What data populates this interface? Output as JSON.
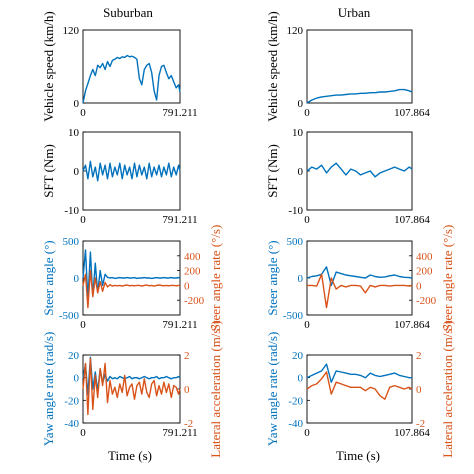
{
  "colors": {
    "blue": "#0072BD",
    "orange": "#D95319",
    "axis": "#000000"
  },
  "columns": [
    {
      "title": "Suburban",
      "x_start_label": "0",
      "x_end_label": "791.211",
      "x_range": [
        0,
        791.211
      ]
    },
    {
      "title": "Urban",
      "x_start_label": "0",
      "x_end_label": "107.864",
      "x_range": [
        0,
        107.864
      ]
    }
  ],
  "xlabel": "Time (s)",
  "chart_data": [
    {
      "type": "line",
      "panel": "speed-suburban",
      "ylabel": "Vehicle speed (km/h)",
      "ylim": [
        0,
        120
      ],
      "y_ticks": [
        "0",
        "120"
      ],
      "xlim": [
        0,
        791.211
      ],
      "series": [
        {
          "color": "#0072BD",
          "x": [
            0,
            20,
            40,
            60,
            80,
            100,
            120,
            140,
            160,
            180,
            200,
            220,
            240,
            260,
            280,
            300,
            320,
            340,
            360,
            380,
            400,
            420,
            440,
            460,
            480,
            500,
            520,
            540,
            560,
            580,
            600,
            620,
            640,
            660,
            680,
            700,
            720,
            740,
            760,
            780,
            791.211
          ],
          "values": [
            0,
            20,
            32,
            45,
            55,
            45,
            62,
            58,
            65,
            55,
            68,
            60,
            70,
            72,
            75,
            73,
            76,
            75,
            78,
            76,
            77,
            75,
            72,
            40,
            30,
            55,
            62,
            65,
            50,
            20,
            5,
            45,
            60,
            62,
            50,
            40,
            45,
            35,
            25,
            30,
            18
          ]
        }
      ]
    },
    {
      "type": "line",
      "panel": "speed-urban",
      "ylabel": "Vehicle speed (km/h)",
      "ylim": [
        0,
        120
      ],
      "y_ticks": [
        "0",
        "120"
      ],
      "xlim": [
        0,
        107.864
      ],
      "series": [
        {
          "color": "#0072BD",
          "x": [
            0,
            5,
            10,
            15,
            20,
            25,
            30,
            35,
            40,
            45,
            50,
            55,
            60,
            65,
            70,
            75,
            80,
            85,
            90,
            95,
            100,
            105,
            107.864
          ],
          "values": [
            0,
            5,
            8,
            10,
            11,
            12,
            13,
            13,
            14,
            15,
            15,
            16,
            16,
            17,
            17,
            18,
            18,
            19,
            20,
            22,
            22,
            20,
            18
          ]
        }
      ]
    },
    {
      "type": "line",
      "panel": "sft-suburban",
      "ylabel": "SFT (Nm)",
      "ylim": [
        -10,
        10
      ],
      "y_ticks": [
        "10",
        "0",
        "-10"
      ],
      "xlim": [
        0,
        791.211
      ],
      "series": [
        {
          "color": "#0072BD",
          "x": [
            0,
            20,
            40,
            60,
            80,
            100,
            120,
            140,
            160,
            180,
            200,
            220,
            240,
            260,
            280,
            300,
            320,
            340,
            360,
            380,
            400,
            420,
            440,
            460,
            480,
            500,
            520,
            540,
            560,
            580,
            600,
            620,
            640,
            660,
            680,
            700,
            720,
            740,
            760,
            780,
            791.211
          ],
          "values": [
            0,
            1.5,
            -2,
            2.5,
            -1.5,
            1,
            -2.5,
            2,
            -1,
            1.5,
            -2,
            2,
            -1.5,
            1,
            -1,
            2,
            -2,
            1.5,
            -1,
            1,
            -2,
            2,
            -1.5,
            1.5,
            -1,
            1,
            -2,
            2,
            -1.5,
            1,
            -1,
            1.5,
            -1.5,
            1,
            -1,
            2,
            -1.5,
            1,
            -1,
            1.5,
            0
          ]
        }
      ]
    },
    {
      "type": "line",
      "panel": "sft-urban",
      "ylabel": "SFT (Nm)",
      "ylim": [
        -10,
        10
      ],
      "y_ticks": [
        "10",
        "0",
        "-10"
      ],
      "xlim": [
        0,
        107.864
      ],
      "series": [
        {
          "color": "#0072BD",
          "x": [
            0,
            5,
            10,
            15,
            20,
            25,
            30,
            35,
            40,
            45,
            50,
            55,
            60,
            65,
            70,
            75,
            80,
            85,
            90,
            95,
            100,
            105,
            107.864
          ],
          "values": [
            0,
            1,
            0.5,
            1.5,
            -0.5,
            1,
            2,
            0.5,
            -1,
            0.5,
            0,
            -1,
            -0.5,
            0,
            -1.5,
            -0.5,
            0,
            0.5,
            1,
            0.5,
            0,
            1,
            0.5
          ]
        }
      ]
    },
    {
      "type": "line",
      "panel": "steer-suburban",
      "ylabel": "Steer angle (°)",
      "ylim": [
        -500,
        500
      ],
      "y_ticks": [
        "500",
        "0",
        "-500"
      ],
      "y2label": "Steer angle rate (°/s)",
      "y2lim": [
        -400,
        600
      ],
      "y2_ticks": [
        "400",
        "200",
        "0",
        "-200"
      ],
      "xlim": [
        0,
        791.211
      ],
      "series": [
        {
          "color": "#0072BD",
          "axis": "left",
          "x": [
            0,
            20,
            40,
            60,
            80,
            100,
            120,
            140,
            160,
            180,
            200,
            220,
            240,
            260,
            280,
            300,
            320,
            340,
            360,
            380,
            400,
            420,
            440,
            460,
            480,
            500,
            520,
            540,
            560,
            580,
            600,
            620,
            640,
            660,
            680,
            700,
            720,
            740,
            760,
            780,
            791.211
          ],
          "values": [
            0,
            380,
            -300,
            350,
            -250,
            200,
            -200,
            100,
            -100,
            50,
            10,
            0,
            5,
            -5,
            0,
            5,
            0,
            0,
            5,
            0,
            0,
            5,
            -5,
            0,
            0,
            5,
            0,
            0,
            -5,
            0,
            5,
            0,
            0,
            5,
            0,
            0,
            5,
            0,
            0,
            5,
            0
          ]
        },
        {
          "color": "#D95319",
          "axis": "right",
          "x": [
            0,
            20,
            40,
            60,
            80,
            100,
            120,
            140,
            160,
            180,
            200,
            220,
            240,
            260,
            280,
            300,
            320,
            340,
            360,
            380,
            400,
            420,
            440,
            460,
            480,
            500,
            520,
            540,
            560,
            580,
            600,
            620,
            640,
            660,
            680,
            700,
            720,
            740,
            760,
            780,
            791.211
          ],
          "values": [
            0,
            150,
            -300,
            200,
            -150,
            100,
            -100,
            50,
            -80,
            40,
            -20,
            10,
            -10,
            0,
            -5,
            0,
            -10,
            0,
            5,
            -5,
            0,
            -5,
            0,
            0,
            -10,
            0,
            5,
            -5,
            0,
            -10,
            0,
            5,
            0,
            -5,
            0,
            -5,
            0,
            0,
            -5,
            0,
            0
          ]
        }
      ]
    },
    {
      "type": "line",
      "panel": "steer-urban",
      "ylabel": "Steer angle (°)",
      "ylim": [
        -500,
        500
      ],
      "y_ticks": [
        "500",
        "0",
        "-500"
      ],
      "y2label": "Steer angle rate (°/s)",
      "y2lim": [
        -400,
        600
      ],
      "y2_ticks": [
        "400",
        "200",
        "0",
        "-200"
      ],
      "xlim": [
        0,
        107.864
      ],
      "series": [
        {
          "color": "#0072BD",
          "axis": "left",
          "x": [
            0,
            5,
            10,
            15,
            20,
            25,
            30,
            35,
            40,
            45,
            50,
            55,
            60,
            65,
            70,
            75,
            80,
            85,
            90,
            95,
            100,
            105,
            107.864
          ],
          "values": [
            0,
            20,
            30,
            50,
            150,
            -100,
            80,
            60,
            40,
            30,
            20,
            10,
            0,
            40,
            20,
            10,
            15,
            30,
            40,
            20,
            10,
            5,
            0
          ]
        },
        {
          "color": "#D95319",
          "axis": "right",
          "x": [
            0,
            5,
            10,
            15,
            20,
            25,
            30,
            35,
            40,
            45,
            50,
            55,
            60,
            65,
            70,
            75,
            80,
            85,
            90,
            95,
            100,
            105,
            107.864
          ],
          "values": [
            0,
            0,
            -10,
            150,
            -300,
            100,
            -50,
            0,
            -20,
            0,
            0,
            -10,
            -100,
            0,
            -20,
            0,
            0,
            -10,
            0,
            0,
            0,
            -10,
            0
          ]
        }
      ]
    },
    {
      "type": "line",
      "panel": "yaw-suburban",
      "ylabel": "Yaw angle rate (rad/s)",
      "ylim": [
        -40,
        20
      ],
      "y_ticks": [
        "20",
        "0",
        "-20",
        "-40"
      ],
      "y2label": "Lateral acceleration (m/s²)",
      "y2lim": [
        -2,
        2
      ],
      "y2_ticks": [
        "2",
        "0",
        "-2"
      ],
      "xlim": [
        0,
        791.211
      ],
      "series": [
        {
          "color": "#0072BD",
          "axis": "left",
          "x": [
            0,
            20,
            40,
            60,
            80,
            100,
            120,
            140,
            160,
            180,
            200,
            220,
            240,
            260,
            280,
            300,
            320,
            340,
            360,
            380,
            400,
            420,
            440,
            460,
            480,
            500,
            520,
            540,
            560,
            580,
            600,
            620,
            640,
            660,
            680,
            700,
            720,
            740,
            760,
            780,
            791.211
          ],
          "values": [
            0,
            12,
            -15,
            18,
            -10,
            5,
            -12,
            8,
            -5,
            3,
            -3,
            1,
            -1,
            0,
            -1,
            1,
            0,
            -1,
            0,
            1,
            -1,
            0,
            0,
            -1,
            0,
            1,
            0,
            -1,
            0,
            0,
            1,
            -1,
            0,
            0,
            1,
            0,
            -1,
            0,
            0,
            1,
            0
          ]
        },
        {
          "color": "#D95319",
          "axis": "right",
          "x": [
            0,
            20,
            40,
            60,
            80,
            100,
            120,
            140,
            160,
            180,
            200,
            220,
            240,
            260,
            280,
            300,
            320,
            340,
            360,
            380,
            400,
            420,
            440,
            460,
            480,
            500,
            520,
            540,
            560,
            580,
            600,
            620,
            640,
            660,
            680,
            700,
            720,
            740,
            760,
            780,
            791.211
          ],
          "values": [
            0,
            1.5,
            -1.5,
            1.8,
            -1.2,
            0.8,
            -0.5,
            1.2,
            0.2,
            1.5,
            -0.8,
            0.5,
            -0.3,
            0.1,
            -0.5,
            0.3,
            -0.2,
            0.8,
            -0.4,
            0.1,
            0.3,
            -0.6,
            0.2,
            0.4,
            -0.3,
            0.6,
            -0.2,
            -0.5,
            0.3,
            0.5,
            -0.4,
            0.2,
            -0.3,
            0.4,
            -0.2,
            0.3,
            -0.5,
            0.2,
            0.1,
            -0.3,
            0
          ]
        }
      ]
    },
    {
      "type": "line",
      "panel": "yaw-urban",
      "ylabel": "Yaw angle rate (rad/s)",
      "ylim": [
        -40,
        20
      ],
      "y_ticks": [
        "20",
        "0",
        "-20",
        "-40"
      ],
      "y2label": "Lateral acceleration (m/s²)",
      "y2lim": [
        -2,
        2
      ],
      "y2_ticks": [
        "2",
        "0",
        "-2"
      ],
      "xlim": [
        0,
        107.864
      ],
      "series": [
        {
          "color": "#0072BD",
          "axis": "left",
          "x": [
            0,
            5,
            10,
            15,
            20,
            25,
            30,
            35,
            40,
            45,
            50,
            55,
            60,
            65,
            70,
            75,
            80,
            85,
            90,
            95,
            100,
            105,
            107.864
          ],
          "values": [
            0,
            2,
            4,
            6,
            12,
            -4,
            6,
            5,
            4,
            3,
            3,
            2,
            0,
            4,
            2,
            1,
            2,
            3,
            4,
            2,
            1,
            0,
            0
          ]
        },
        {
          "color": "#D95319",
          "axis": "right",
          "x": [
            0,
            5,
            10,
            15,
            20,
            25,
            30,
            35,
            40,
            45,
            50,
            55,
            60,
            65,
            70,
            75,
            80,
            85,
            90,
            95,
            100,
            105,
            107.864
          ],
          "values": [
            0,
            0.2,
            0.3,
            0.6,
            1.0,
            -0.3,
            0.4,
            0.3,
            0.2,
            0.1,
            0.1,
            0.1,
            -0.1,
            0.1,
            0,
            -0.4,
            -0.6,
            0.1,
            0.2,
            0.1,
            0,
            0.1,
            0
          ]
        }
      ]
    }
  ]
}
